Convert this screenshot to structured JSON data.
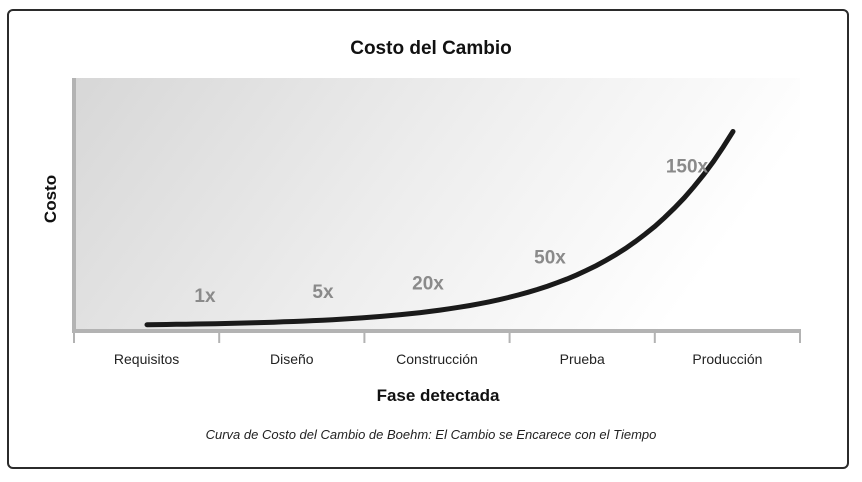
{
  "chart_data": {
    "type": "line",
    "title": "Costo del Cambio",
    "xlabel": "Fase detectada",
    "ylabel": "Costo",
    "categories": [
      "Requisitos",
      "Diseño",
      "Construcción",
      "Prueba",
      "Producción"
    ],
    "values": [
      1,
      5,
      20,
      50,
      150
    ],
    "data_labels": [
      "1x",
      "5x",
      "20x",
      "50x",
      "150x"
    ],
    "ylim": [
      0,
      165
    ],
    "grid": false,
    "legend": "none",
    "caption": "Curva de Costo del Cambio de Boehm: El Cambio se Encarece con el Tiempo"
  },
  "colors": {
    "curve": "#1a1a1a",
    "axis": "#b3b3b3",
    "plot_fill_start": "#d7d7d7",
    "plot_fill_end": "#ffffff",
    "point_label": "#8a8a8a"
  }
}
